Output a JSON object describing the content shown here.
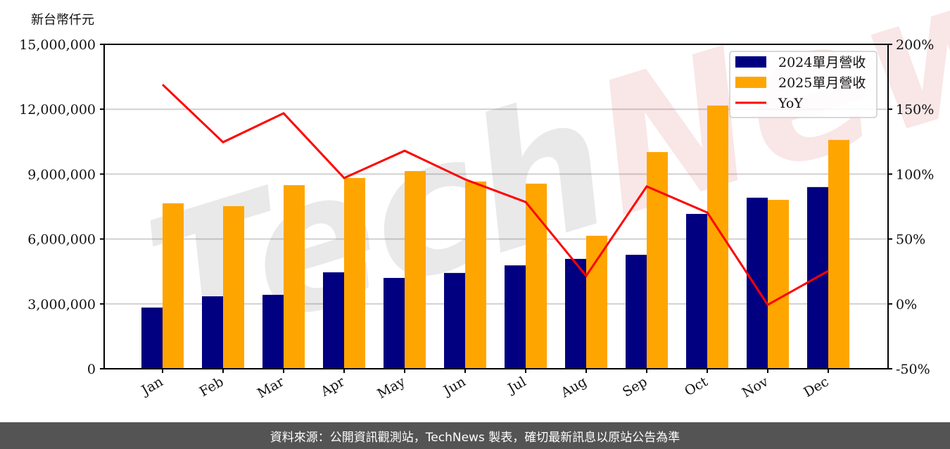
{
  "chart_data": {
    "type": "bar",
    "title": "",
    "unit_label": "新台幣仟元",
    "xlabel": "",
    "ylabel": "新台幣仟元",
    "y2label": "YoY",
    "categories": [
      "Jan",
      "Feb",
      "Mar",
      "Apr",
      "May",
      "Jun",
      "Jul",
      "Aug",
      "Sep",
      "Oct",
      "Nov",
      "Dec"
    ],
    "series": [
      {
        "name": "2024單月營收",
        "type": "bar",
        "axis": "left",
        "color": "#000080",
        "values": [
          2830000,
          3350000,
          3420000,
          4460000,
          4200000,
          4430000,
          4780000,
          5080000,
          5270000,
          7160000,
          7910000,
          8400000
        ]
      },
      {
        "name": "2025單月營收",
        "type": "bar",
        "axis": "left",
        "color": "#FFA500",
        "values": [
          7650000,
          7520000,
          8490000,
          8820000,
          9140000,
          8660000,
          8560000,
          6150000,
          10020000,
          12170000,
          7810000,
          10580000
        ]
      },
      {
        "name": "YoY",
        "type": "line",
        "axis": "right",
        "color": "#FF0000",
        "values": [
          169,
          124.6,
          146.9,
          97,
          118,
          95.9,
          78.5,
          21.6,
          90.5,
          70.4,
          -0.7,
          25.4
        ],
        "note": "Dec YoY point present; computed from values"
      }
    ],
    "ylim": [
      0,
      15000000
    ],
    "y_ticks": [
      0,
      3000000,
      6000000,
      9000000,
      12000000,
      15000000
    ],
    "y_tick_labels": [
      "0",
      "3,000,000",
      "6,000,000",
      "9,000,000",
      "12,000,000",
      "15,000,000"
    ],
    "y2lim": [
      -50,
      200
    ],
    "y2_ticks": [
      -50,
      0,
      50,
      100,
      150,
      200
    ],
    "y2_tick_labels": [
      "-50%",
      "0%",
      "50%",
      "100%",
      "150%",
      "200%"
    ],
    "grid": true,
    "legend_position": "upper right",
    "watermark": "TechNews"
  },
  "footer": {
    "text": "資料來源：公開資訊觀測站，TechNews 製表，確切最新訊息以原站公告為準"
  }
}
